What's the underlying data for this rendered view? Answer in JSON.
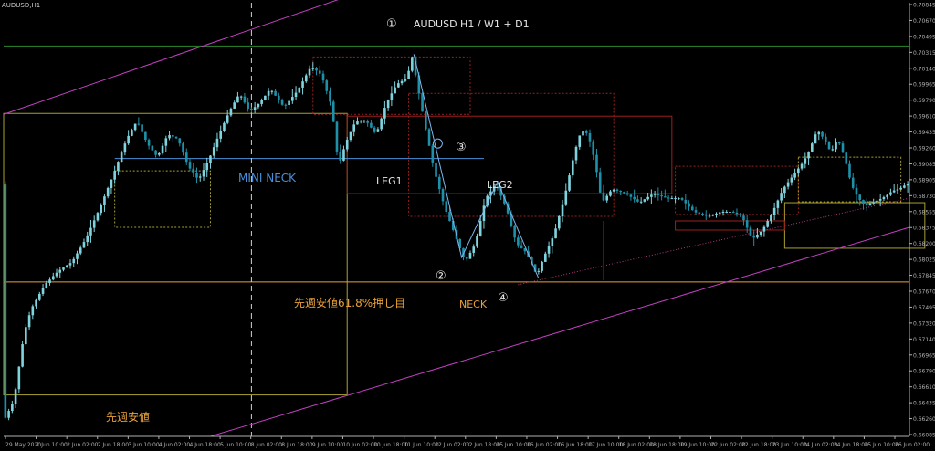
{
  "window": {
    "symbol_label": "AUDUSD,H1"
  },
  "chart_data": {
    "type": "candlestick",
    "title": "AUDUSD H1 / W1 + D1",
    "background": "#000000",
    "colors": {
      "bull_candle": "#7fd3dd",
      "bear_candle": "#1e90a8",
      "axis": "#b0b0b0",
      "annotation_white": "#e6e6e6",
      "annotation_orange": "#e8a13a",
      "mini_neck_blue": "#4a8fd8",
      "trend_magenta": "#c040c0",
      "box_yellow": "#a8a030",
      "box_red": "#9b1f1f",
      "line_green": "#2b8a2b"
    },
    "y_axis": {
      "range": [
        0.66085,
        0.70845
      ],
      "ticks": [
        "0.70845",
        "0.70670",
        "0.70495",
        "0.70315",
        "0.70140",
        "0.69965",
        "0.69790",
        "0.69610",
        "0.69435",
        "0.69260",
        "0.69085",
        "0.68905",
        "0.68730",
        "0.68555",
        "0.68375",
        "0.68200",
        "0.68025",
        "0.67845",
        "0.67670",
        "0.67495",
        "0.67320",
        "0.67140",
        "0.66965",
        "0.66790",
        "0.66610",
        "0.66435",
        "0.66260",
        "0.66085"
      ]
    },
    "x_axis": {
      "ticks": [
        "29 May 2020",
        "1 Jun 10:00",
        "2 Jun 02:00",
        "2 Jun 18:00",
        "3 Jun 10:00",
        "4 Jun 02:00",
        "4 Jun 18:00",
        "5 Jun 10:00",
        "8 Jun 02:00",
        "8 Jun 18:00",
        "9 Jun 10:00",
        "10 Jun 02:00",
        "10 Jun 18:00",
        "11 Jun 10:00",
        "12 Jun 02:00",
        "12 Jun 18:00",
        "15 Jun 10:00",
        "16 Jun 02:00",
        "16 Jun 18:00",
        "17 Jun 10:00",
        "18 Jun 02:00",
        "18 Jun 18:00",
        "19 Jun 10:00",
        "22 Jun 02:00",
        "22 Jun 18:00",
        "23 Jun 10:00",
        "24 Jun 02:00",
        "24 Jun 18:00",
        "25 Jun 10:00",
        "26 Jun 02:00"
      ]
    },
    "price_path": [
      [
        0,
        0.6625
      ],
      [
        3,
        0.6648
      ],
      [
        6,
        0.6722
      ],
      [
        8,
        0.6748
      ],
      [
        12,
        0.6775
      ],
      [
        16,
        0.679
      ],
      [
        20,
        0.68
      ],
      [
        24,
        0.6825
      ],
      [
        28,
        0.6858
      ],
      [
        32,
        0.6895
      ],
      [
        36,
        0.6935
      ],
      [
        39,
        0.6955
      ],
      [
        42,
        0.693
      ],
      [
        45,
        0.6915
      ],
      [
        48,
        0.694
      ],
      [
        51,
        0.6935
      ],
      [
        54,
        0.6905
      ],
      [
        57,
        0.689
      ],
      [
        60,
        0.6912
      ],
      [
        63,
        0.694
      ],
      [
        66,
        0.6965
      ],
      [
        69,
        0.6985
      ],
      [
        72,
        0.6965
      ],
      [
        75,
        0.6975
      ],
      [
        78,
        0.699
      ],
      [
        82,
        0.697
      ],
      [
        86,
        0.6988
      ],
      [
        90,
        0.7015
      ],
      [
        93,
        0.7005
      ],
      [
        96,
        0.697
      ],
      [
        98,
        0.6905
      ],
      [
        100,
        0.693
      ],
      [
        103,
        0.6955
      ],
      [
        106,
        0.6955
      ],
      [
        109,
        0.694
      ],
      [
        112,
        0.6975
      ],
      [
        115,
        0.6995
      ],
      [
        118,
        0.7002
      ],
      [
        119.5,
        0.7025
      ],
      [
        121,
        0.6995
      ],
      [
        123,
        0.6955
      ],
      [
        126,
        0.69
      ],
      [
        129,
        0.686
      ],
      [
        132,
        0.683
      ],
      [
        135,
        0.68
      ],
      [
        138,
        0.682
      ],
      [
        141,
        0.687
      ],
      [
        144,
        0.6885
      ],
      [
        147,
        0.686
      ],
      [
        150,
        0.682
      ],
      [
        153,
        0.681
      ],
      [
        156,
        0.6785
      ],
      [
        158,
        0.6805
      ],
      [
        161,
        0.683
      ],
      [
        164,
        0.687
      ],
      [
        167,
        0.692
      ],
      [
        169,
        0.6945
      ],
      [
        171,
        0.694
      ],
      [
        173,
        0.691
      ],
      [
        175,
        0.6865
      ],
      [
        178,
        0.688
      ],
      [
        182,
        0.6875
      ],
      [
        186,
        0.6865
      ],
      [
        190,
        0.6875
      ],
      [
        194,
        0.687
      ],
      [
        198,
        0.687
      ],
      [
        202,
        0.6855
      ],
      [
        206,
        0.685
      ],
      [
        210,
        0.6855
      ],
      [
        213,
        0.6855
      ],
      [
        216,
        0.685
      ],
      [
        219,
        0.6825
      ],
      [
        222,
        0.6835
      ],
      [
        225,
        0.6855
      ],
      [
        228,
        0.688
      ],
      [
        231,
        0.6895
      ],
      [
        234,
        0.691
      ],
      [
        236,
        0.6925
      ],
      [
        238,
        0.6945
      ],
      [
        240,
        0.6935
      ],
      [
        242,
        0.692
      ],
      [
        244,
        0.6935
      ],
      [
        246,
        0.6915
      ],
      [
        248,
        0.6885
      ],
      [
        250,
        0.687
      ],
      [
        252,
        0.6862
      ],
      [
        254,
        0.6865
      ],
      [
        256,
        0.6868
      ],
      [
        258,
        0.6872
      ],
      [
        260,
        0.6878
      ],
      [
        262,
        0.688
      ],
      [
        264,
        0.6885
      ]
    ],
    "wave_marks": [
      {
        "text": "①"
      },
      {
        "text": "②"
      },
      {
        "text": "③"
      },
      {
        "text": "④"
      }
    ],
    "annotations": {
      "mini_neck": "MINI NECK",
      "leg1": "LEG1",
      "leg2": "LEG2",
      "neck": "NECK",
      "fib_label": "先週安値61.8%押し目",
      "last_week_low": "先週安値"
    },
    "levels": {
      "green_high": 0.7037,
      "mini_neck": 0.69135,
      "fib_618": 0.6778,
      "yellow_box_top": 0.6963,
      "yellow_box_bottom": 0.6654,
      "right_box_top": 0.6865,
      "right_box_bottom": 0.6815
    }
  }
}
